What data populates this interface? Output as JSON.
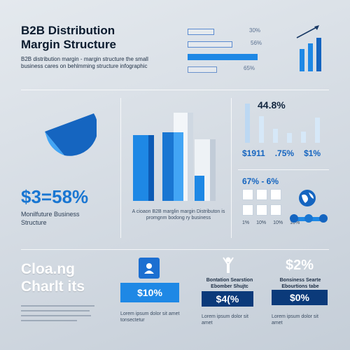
{
  "header": {
    "title_line1": "B2B Distribution",
    "title_line2": "Margin Structure",
    "subtitle": "B2B distribution margin - margin structure the small business cares on behlmming structure infographic"
  },
  "top_right": {
    "bars": [
      {
        "label": "30%",
        "value": 0.3
      },
      {
        "label": "56%",
        "value": 0.56
      },
      {
        "label": "",
        "value": 0.75
      },
      {
        "label": "65%",
        "value": 0.65
      }
    ]
  },
  "mid_right": {
    "heading": "44.8%",
    "labels": [
      "$1911",
      ".75%",
      "$1%"
    ]
  },
  "mid_left": {
    "stat": "$3=58%",
    "caption": "Monilfuture Business Structure"
  },
  "center_chart": {
    "caption": "A cioaon B2B marglin margin Distributon is promgnm bodong ry business"
  },
  "grid_section": {
    "heading": "67% - 6%",
    "cell_labels": [
      "1%",
      "10%",
      "10%",
      "10%"
    ]
  },
  "bottom": {
    "heading_line1": "Cloa.ng",
    "heading_line2": "Charlt its",
    "cards": [
      {
        "value": "$10%",
        "caption": "Lorem ipsum dolor sit amet tonsectetur"
      },
      {
        "title": "Bontation Searstion Ebomber Shujtc",
        "value": "$4(%",
        "caption": "Lorem ipsum dolor sit amet"
      },
      {
        "heading": "$2%",
        "title": "Bonsiness Searte Ebourtions tabe",
        "value": "$0%",
        "caption": "Lorem ipsum dolor sit amet"
      }
    ]
  },
  "colors": {
    "accent": "#1e88e5",
    "dark_navy": "#0b3a7a",
    "mid_blue": "#1565c0"
  },
  "icons": [
    "trend-arrow-icon",
    "pie-chart-icon",
    "globe-icon",
    "team-icon",
    "person-icon",
    "person-raise-icon"
  ]
}
